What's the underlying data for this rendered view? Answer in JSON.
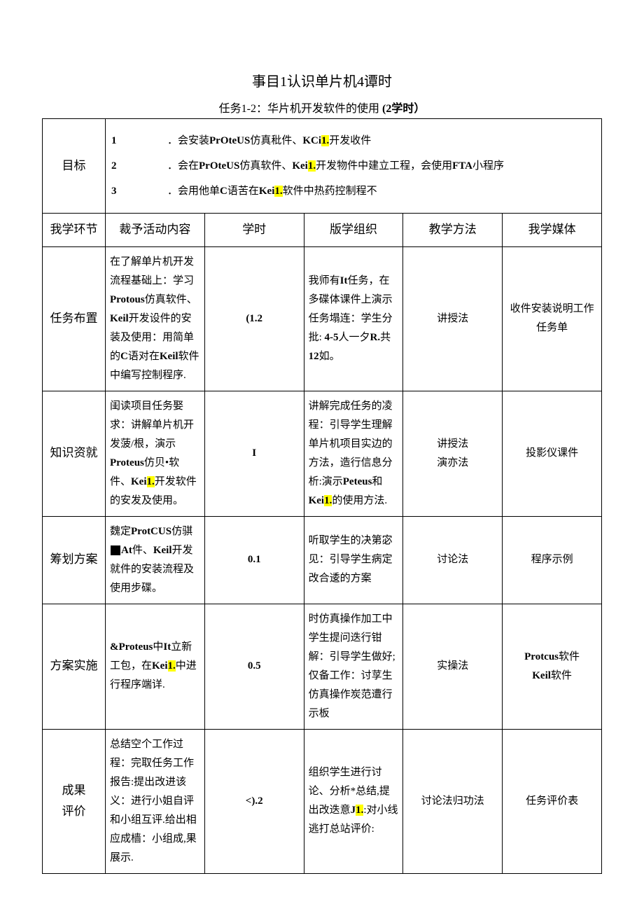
{
  "title": "事目1认识单片机4谭时",
  "subtitle_prefix": "任务1-2：华片机开发软件的使用 ",
  "subtitle_suffix": "(2学时）",
  "goals_label": "目标",
  "goals": [
    {
      "num": "1",
      "text_a": "．会安装",
      "b1": "PrOteUS",
      "text_b": "仿真秕件、",
      "b2": "KCi",
      "hl": "1.",
      "text_c": "开发收件"
    },
    {
      "num": "2",
      "text_a": "．会在",
      "b1": "PrOteUS",
      "text_b": "仿真软件、",
      "b2": "Kei",
      "hl": "1.",
      "text_c": "开发物件中建立工程，会使用",
      "b3": "FTA",
      "text_d": "小程序"
    },
    {
      "num": "3",
      "text_a": "．会用他单",
      "b1": "C",
      "text_b": "语苦在",
      "b2": "Kei",
      "hl": "1.",
      "text_c": "软件中热药控制程不"
    }
  ],
  "headers": {
    "stage": "我学环节",
    "activity": "裁予活动内容",
    "hours": "学时",
    "org": "版学组织",
    "method": "教学方法",
    "media": "我学媒体"
  },
  "rows": [
    {
      "stage": "任务布置",
      "activity_parts": [
        "在了解单片机开发流程基础上：学习",
        {
          "b": "Protous"
        },
        "仿真软件、",
        {
          "b": "Keil"
        },
        "开发设件的安装及使用：用简单的",
        {
          "b": "C"
        },
        "语对在",
        {
          "b": "Keil"
        },
        "软件中编写控制程序."
      ],
      "hours": "(1.2",
      "org_parts": [
        "我师有",
        {
          "b": "It"
        },
        "任务，在多碟体课件上演示任务塌连：学生分批: ",
        {
          "b": "4-5"
        },
        "人一夕",
        {
          "b": "R."
        },
        "共",
        {
          "b": "12"
        },
        "如。"
      ],
      "method": "讲授法",
      "media": "收件安装说明工作任务单"
    },
    {
      "stage": "知识资就",
      "activity_parts": [
        "闺读项目任务娶求：讲解单片机开发菠/根，演示",
        {
          "b": "Proteus"
        },
        "仿贝•软件、",
        {
          "b": "Kei"
        },
        {
          "hl": "1."
        },
        "开发软件的安发及使用。"
      ],
      "hours": "I",
      "org_parts": [
        "讲解完成任务的凌程：引导学生理解单片机项目实边的方法，造行信息分析:演示",
        {
          "b": "Peteus"
        },
        "和",
        {
          "b": "Kei"
        },
        {
          "hl": "1."
        },
        "的使用方法."
      ],
      "method": "讲授法\n演亦法",
      "media": "投影仪课件"
    },
    {
      "stage": "筹划方案",
      "activity_parts": [
        "魏定",
        {
          "b": "ProtCUS"
        },
        "仿骐",
        {
          "blk": true
        },
        {
          "b": "At"
        },
        "件、",
        {
          "b": "Keil"
        },
        "开发就件的安装流程及使用步碟。"
      ],
      "hours": "0.1",
      "org_parts": [
        "听取学生的决第宓见：引导学生病定改合逶的方案"
      ],
      "method": "讨论法",
      "media": "程序示例"
    },
    {
      "stage": "方案实施",
      "activity_parts": [
        {
          "b": "&Proteus"
        },
        "中",
        {
          "b": "It"
        },
        "立新工包，在",
        {
          "b": "Kei"
        },
        {
          "hl": "1."
        },
        "中进行程序端详."
      ],
      "hours": "0.5",
      "org_parts": [
        "时仿真操作加工中学生提问迭行钳解：引导学生做好;仅备工作：讨莩生仿真操作炭范遭行示板"
      ],
      "method": "实操法",
      "media_parts": [
        {
          "b": "Protcus"
        },
        "软件\n",
        {
          "b": "Keil"
        },
        "软件"
      ]
    },
    {
      "stage": "成果\n评价",
      "activity_parts": [
        "总结空个工作过程：完取任务工作报告:提出改进该义：进行小姐自评和小组互评.给出相应成樯：小组成,果展示."
      ],
      "hours": "<).2",
      "org_parts": [
        "组织学生进行讨论、分析*总结,提出改迭意",
        {
          "b": "J"
        },
        {
          "hl": "1."
        },
        ":对小线逃打总站评价:"
      ],
      "method": "讨论法归功法",
      "media": "任务评价表"
    }
  ]
}
